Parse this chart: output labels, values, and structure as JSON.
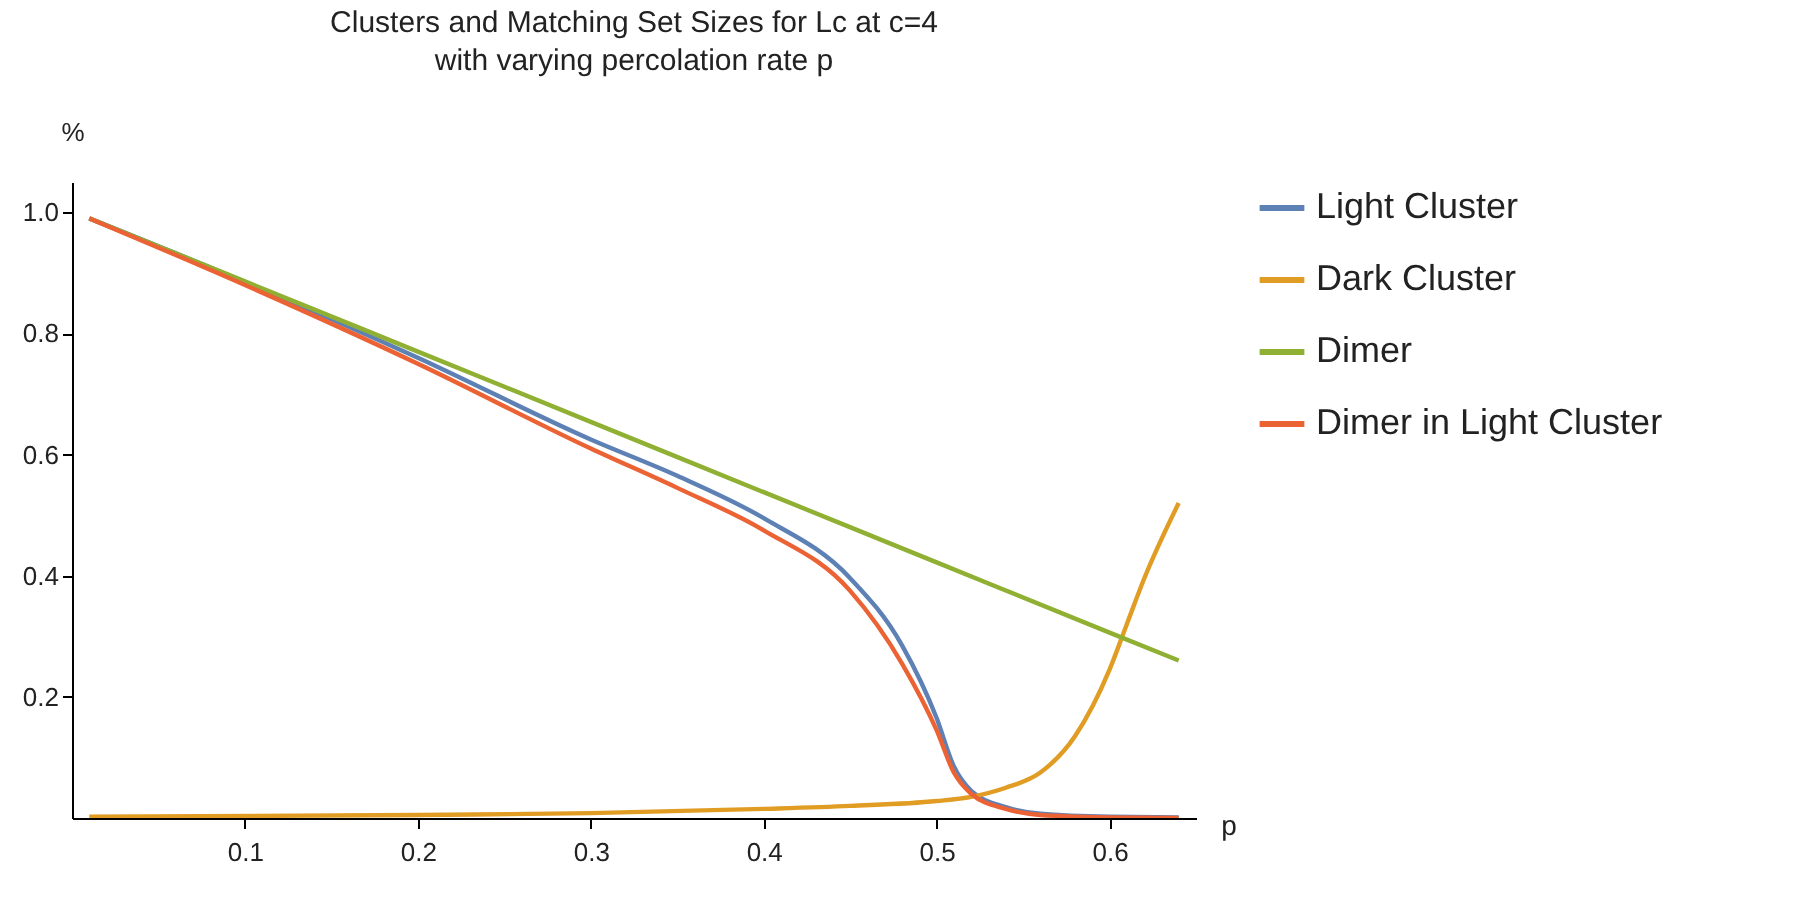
{
  "chart_data": {
    "type": "line",
    "title": "Clusters and Matching Set Sizes for Lc at c=4",
    "subtitle": "with varying percolation rate p",
    "xlabel": "p",
    "ylabel": "%",
    "xlim": [
      0,
      0.65
    ],
    "ylim": [
      0,
      1.05
    ],
    "xticks": [
      0.1,
      0.2,
      0.3,
      0.4,
      0.5,
      0.6
    ],
    "yticks": [
      0.2,
      0.4,
      0.6,
      0.8,
      {
        "value": 1,
        "label": "1.0"
      }
    ],
    "grid": false,
    "legend": "right",
    "series": [
      {
        "name": "Light Cluster",
        "color": "#5e81b5",
        "x": [
          0.01,
          0.1,
          0.2,
          0.3,
          0.35,
          0.4,
          0.45,
          0.48,
          0.5,
          0.51,
          0.52,
          0.54,
          0.56,
          0.6,
          0.64
        ],
        "values": [
          0.99,
          0.885,
          0.76,
          0.625,
          0.565,
          0.495,
          0.396,
          0.285,
          0.165,
          0.085,
          0.045,
          0.018,
          0.007,
          0.002,
          0.001
        ]
      },
      {
        "name": "Dark Cluster",
        "color": "#e19c24",
        "x": [
          0.01,
          0.2,
          0.3,
          0.4,
          0.45,
          0.5,
          0.52,
          0.54,
          0.56,
          0.58,
          0.6,
          0.61,
          0.62,
          0.64
        ],
        "values": [
          0.002,
          0.005,
          0.008,
          0.015,
          0.02,
          0.028,
          0.035,
          0.05,
          0.075,
          0.135,
          0.245,
          0.32,
          0.395,
          0.52
        ]
      },
      {
        "name": "Dimer",
        "color": "#8fb032",
        "x": [
          0.01,
          0.1,
          0.2,
          0.3,
          0.4,
          0.5,
          0.6,
          0.64
        ],
        "values": [
          0.99,
          0.886,
          0.77,
          0.654,
          0.538,
          0.422,
          0.306,
          0.26
        ]
      },
      {
        "name": "Dimer in Light Cluster",
        "color": "#eb6235",
        "x": [
          0.01,
          0.1,
          0.2,
          0.3,
          0.35,
          0.4,
          0.45,
          0.48,
          0.5,
          0.51,
          0.52,
          0.54,
          0.56,
          0.6,
          0.64
        ],
        "values": [
          0.99,
          0.88,
          0.75,
          0.61,
          0.545,
          0.475,
          0.375,
          0.255,
          0.145,
          0.075,
          0.04,
          0.015,
          0.005,
          0.001,
          0
        ]
      }
    ]
  }
}
